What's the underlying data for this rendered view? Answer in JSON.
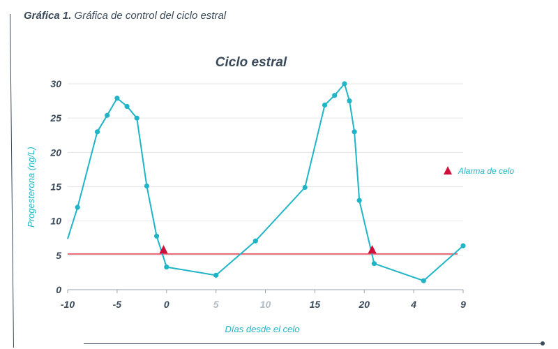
{
  "caption": {
    "lead": "Gráfica 1.",
    "text": "Gráfica de control del ciclo estral"
  },
  "colors": {
    "series": "#1fb5c7",
    "threshold": "#e8334a",
    "marker": "#d0103a",
    "text": "#3b4a5a",
    "grid": "#e3e6e9"
  },
  "chart_data": {
    "type": "line",
    "title": "Ciclo estral",
    "xlabel": "Días desde el celo",
    "ylabel": "Progesterona (ng/L)",
    "ylim": [
      0,
      30
    ],
    "yticks": [
      0,
      5,
      10,
      15,
      20,
      25,
      30
    ],
    "xticks": [
      {
        "label": "-10",
        "x": 0,
        "faded": false
      },
      {
        "label": "-5",
        "x": 5,
        "faded": false
      },
      {
        "label": "0",
        "x": 10,
        "faded": false
      },
      {
        "label": "5",
        "x": 15,
        "faded": true
      },
      {
        "label": "10",
        "x": 20,
        "faded": true
      },
      {
        "label": "15",
        "x": 25,
        "faded": false
      },
      {
        "label": "20",
        "x": 30,
        "faded": false
      },
      {
        "label": "4",
        "x": 35,
        "faded": false
      },
      {
        "label": "9",
        "x": 40,
        "faded": false
      }
    ],
    "xlim": [
      0,
      40
    ],
    "grid": true,
    "series": [
      {
        "x": [
          0,
          1,
          3,
          4,
          5,
          6,
          7,
          8,
          9,
          10,
          15,
          19,
          24,
          26,
          27,
          28,
          28.5,
          29,
          29.5,
          31,
          36,
          40
        ],
        "values": [
          7.4,
          12,
          23,
          25.4,
          27.9,
          26.7,
          25,
          15.1,
          7.8,
          3.3,
          2.1,
          7.1,
          14.9,
          26.9,
          28.3,
          30,
          27.5,
          23,
          13,
          3.8,
          1.3,
          6.4
        ]
      }
    ],
    "threshold": 5.2,
    "alarms": [
      {
        "x": 9.7,
        "y": 5.8
      },
      {
        "x": 30.8,
        "y": 5.8
      }
    ],
    "legend": {
      "label": "Alarma de celo",
      "position": "right"
    }
  }
}
